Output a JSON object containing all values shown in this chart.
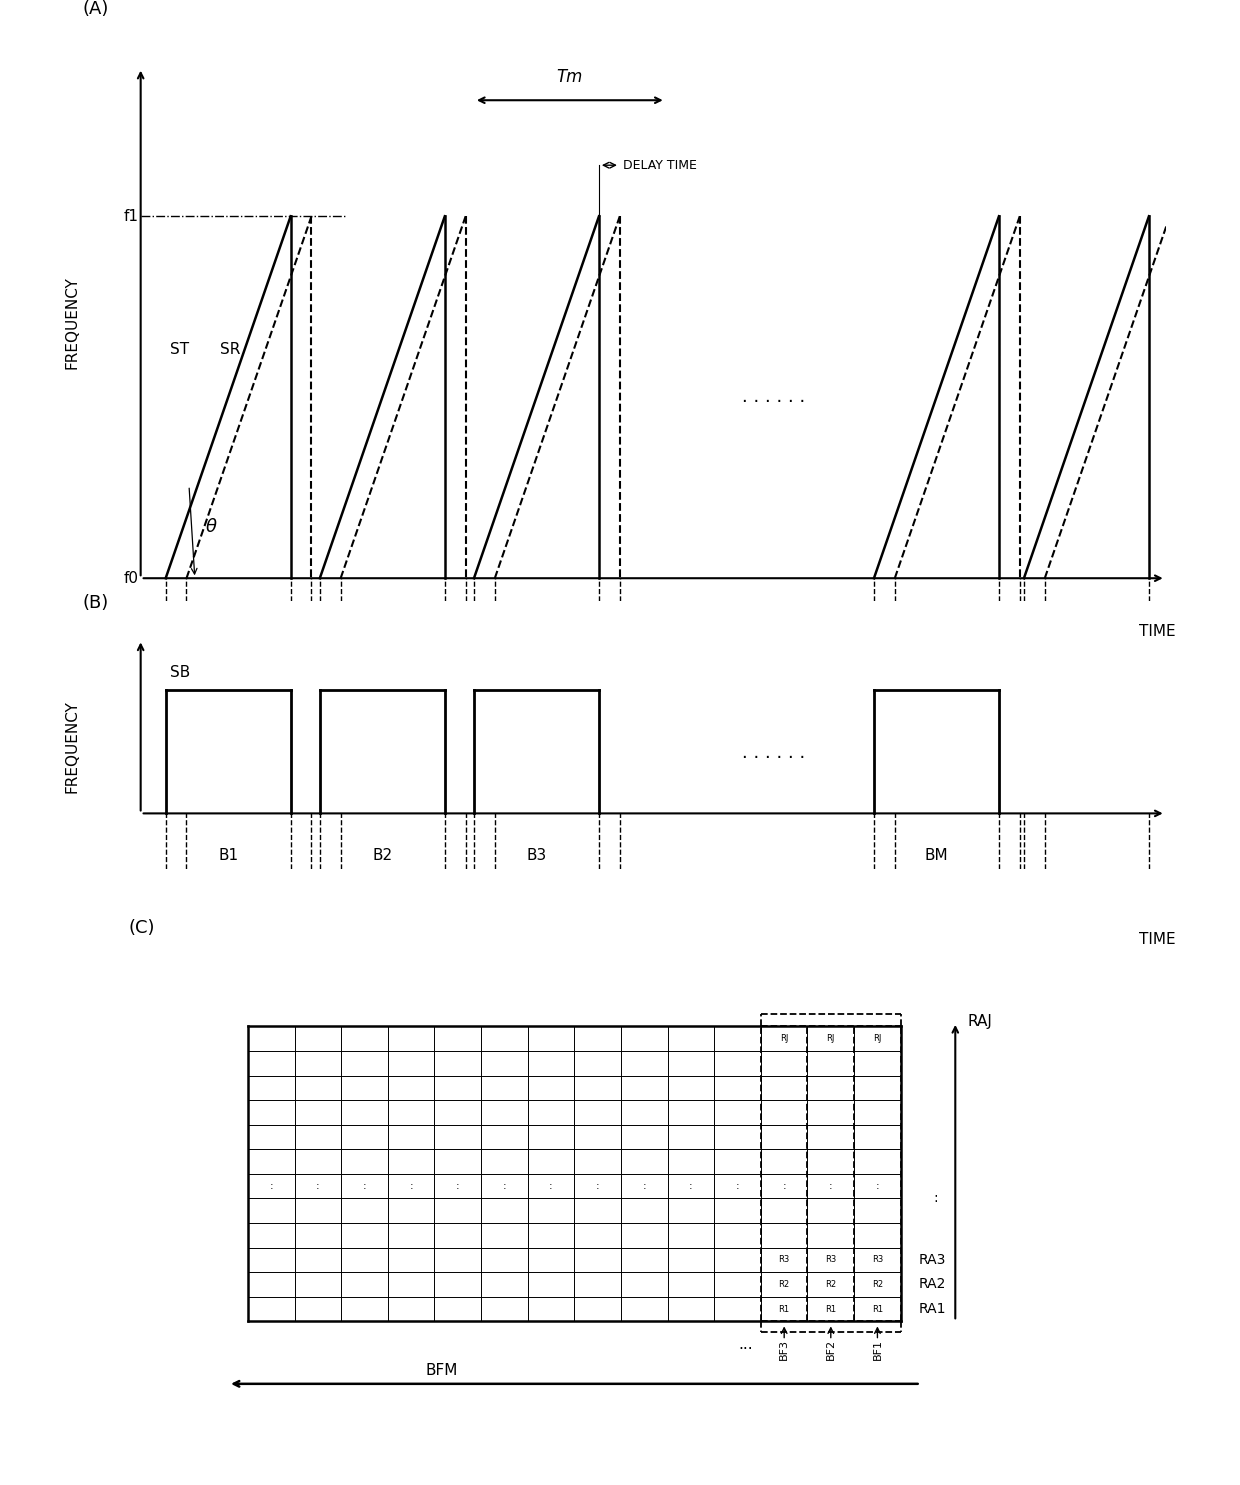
{
  "bg_color": "#ffffff",
  "panel_A": {
    "label": "(A)",
    "ylabel": "FREQUENCY",
    "xlabel": "TIME",
    "f0_label": "f0",
    "f1_label": "f1",
    "ST_label": "ST",
    "SR_label": "SR",
    "theta_label": "θ",
    "Tm_label": "Tm",
    "delay_label": "DELAY TIME"
  },
  "panel_B": {
    "label": "(B)",
    "ylabel": "FREQUENCY",
    "xlabel": "TIME",
    "SB_label": "SB",
    "burst_labels": [
      "B1",
      "B2",
      "B3",
      "BM"
    ]
  },
  "panel_C": {
    "label": "(C)",
    "grid_rows": 12,
    "grid_cols": 14,
    "highlight_cols": 3,
    "BFM_label": "BFM",
    "RAJ_label": "RAJ"
  }
}
